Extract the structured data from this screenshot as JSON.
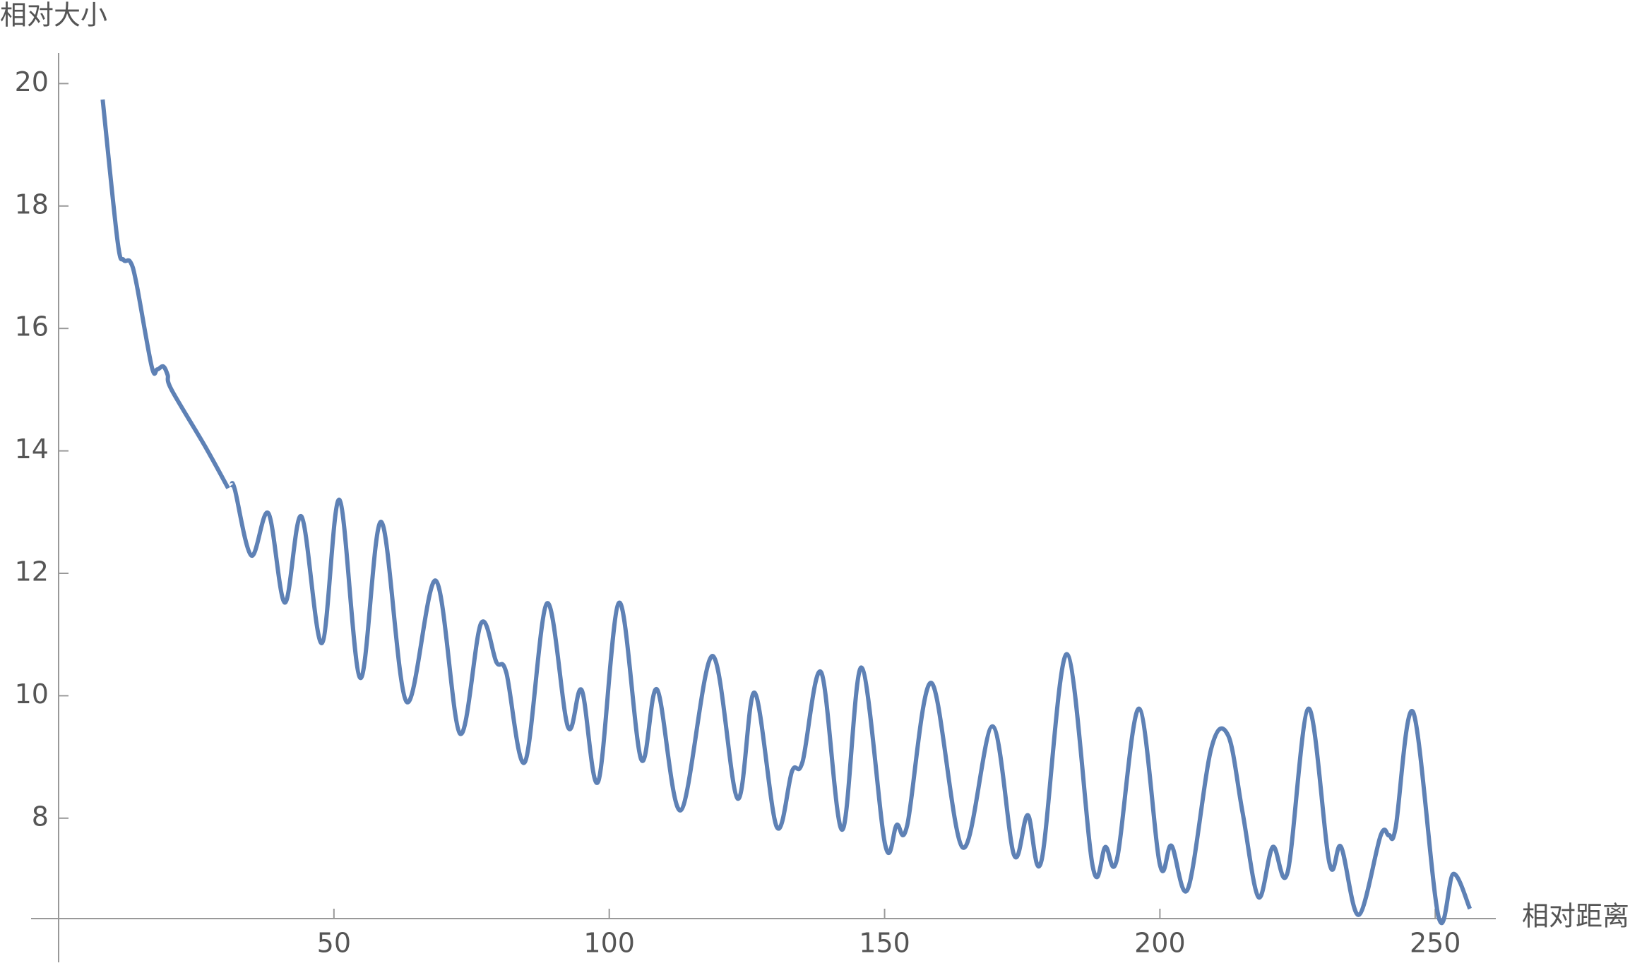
{
  "chart_data": {
    "type": "line",
    "x_label": "相对距离",
    "y_label": "相对大小",
    "x": [
      8.0,
      10.7,
      11.8,
      13.0,
      14.1,
      16.9,
      17.9,
      19.0,
      19.8,
      20.5,
      26.5,
      30.8,
      null,
      31.4,
      32.0,
      35.0,
      38.1,
      41.1,
      44.1,
      47.8,
      51.0,
      54.8,
      58.6,
      63.2,
      68.5,
      72.9,
      76.7,
      79.5,
      81.3,
      84.7,
      88.7,
      92.5,
      95.0,
      98.0,
      101.8,
      105.8,
      108.7,
      113.0,
      118.7,
      123.3,
      126.4,
      130.4,
      133.2,
      135.1,
      138.5,
      142.3,
      145.8,
      150.1,
      152.2,
      154.1,
      158.5,
      164.2,
      169.6,
      173.5,
      176.0,
      178.5,
      183.1,
      187.8,
      190.1,
      192.2,
      196.2,
      200.0,
      202.1,
      205.1,
      209.3,
      212.4,
      215.0,
      217.9,
      220.5,
      223.2,
      227.0,
      230.8,
      232.9,
      236.1,
      240.1,
      241.6,
      242.8,
      246.0,
      250.6,
      253.3,
      256.3
    ],
    "series": [
      {
        "color": "#5e81b5",
        "values": [
          19.74,
          17.43,
          17.12,
          17.09,
          16.75,
          15.38,
          15.33,
          15.38,
          15.24,
          15.0,
          14.09,
          13.39,
          null,
          13.44,
          13.37,
          12.29,
          12.98,
          11.52,
          12.93,
          10.86,
          13.2,
          10.29,
          12.84,
          9.9,
          11.88,
          9.38,
          11.18,
          10.55,
          10.38,
          8.92,
          11.51,
          9.49,
          10.09,
          8.6,
          11.52,
          8.96,
          10.1,
          8.13,
          10.65,
          8.32,
          10.05,
          7.86,
          8.77,
          8.92,
          10.38,
          7.81,
          10.46,
          7.57,
          7.89,
          7.88,
          10.21,
          7.52,
          9.5,
          7.4,
          8.05,
          7.31,
          10.68,
          7.21,
          7.53,
          7.33,
          9.79,
          7.24,
          7.55,
          6.85,
          9.13,
          9.35,
          8.1,
          6.71,
          7.53,
          7.12,
          9.79,
          7.26,
          7.53,
          6.42,
          7.72,
          7.72,
          7.84,
          9.73,
          6.39,
          7.09,
          6.52
        ]
      }
    ],
    "xlim": [
      -5,
      261
    ],
    "ylim": [
      6.36,
      20.5
    ],
    "xticks": [
      50,
      100,
      150,
      200,
      250
    ],
    "yticks": [
      8,
      10,
      12,
      14,
      16,
      18,
      20
    ]
  }
}
